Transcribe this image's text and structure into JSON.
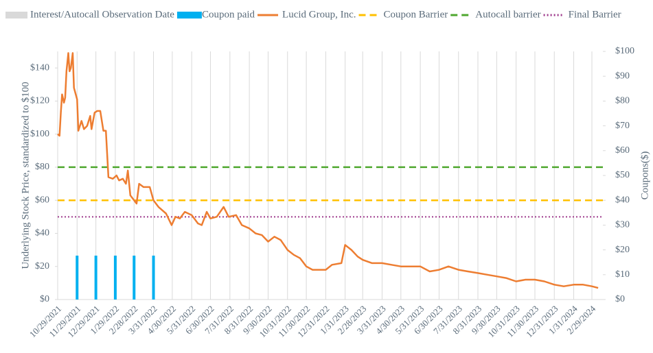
{
  "chart_data": {
    "type": "line",
    "y_label": "Underlying Stock Price, standardized to $100",
    "y2_label": "Coupons($)",
    "categories": [
      "10/29/2021",
      "11/29/2021",
      "12/29/2021",
      "1/29/2022",
      "2/28/2022",
      "3/31/2022",
      "4/30/2022",
      "5/31/2022",
      "6/30/2022",
      "7/31/2022",
      "8/31/2022",
      "9/30/2022",
      "10/31/2022",
      "11/30/2022",
      "12/31/2022",
      "1/31/2023",
      "2/28/2023",
      "3/31/2023",
      "4/30/2023",
      "5/31/2023",
      "6/30/2023",
      "7/31/2023",
      "8/31/2023",
      "9/30/2023",
      "10/31/2023",
      "11/30/2023",
      "12/31/2023",
      "1/31/2024",
      "2/29/2024"
    ],
    "ylim": [
      0,
      150
    ],
    "yticks": [
      {
        "value": 0,
        "label": "$0"
      },
      {
        "value": 20,
        "label": "$20"
      },
      {
        "value": 40,
        "label": "$40"
      },
      {
        "value": 60,
        "label": "$60"
      },
      {
        "value": 80,
        "label": "$80"
      },
      {
        "value": 100,
        "label": "$100"
      },
      {
        "value": 120,
        "label": "$120"
      },
      {
        "value": 140,
        "label": "$140"
      }
    ],
    "y2lim": [
      0,
      100
    ],
    "y2ticks": [
      {
        "value": 0,
        "label": "$0"
      },
      {
        "value": 10,
        "label": "$10"
      },
      {
        "value": 20,
        "label": "$20"
      },
      {
        "value": 30,
        "label": "$30"
      },
      {
        "value": 40,
        "label": "$40"
      },
      {
        "value": 50,
        "label": "$50"
      },
      {
        "value": 60,
        "label": "$60"
      },
      {
        "value": 70,
        "label": "$70"
      },
      {
        "value": 80,
        "label": "$80"
      },
      {
        "value": 90,
        "label": "$90"
      },
      {
        "value": 100,
        "label": "$100"
      }
    ],
    "series": [
      {
        "name": "Interest/Autocall Observation Date",
        "type": "vgrid",
        "color": "#d9d9d9"
      },
      {
        "name": "Coupon paid",
        "type": "bar",
        "axis": "y2",
        "color": "#00b0f0",
        "x": [
          "11/29/2021",
          "12/29/2021",
          "1/29/2022",
          "2/28/2022",
          "3/31/2022"
        ],
        "values": [
          17.7,
          17.7,
          17.7,
          17.7,
          17.7
        ]
      },
      {
        "name": "Lucid Group, Inc.",
        "type": "line",
        "color": "#ed7d31",
        "x": [
          "10/29/2021",
          "11/1/2021",
          "11/3/2021",
          "11/5/2021",
          "11/8/2021",
          "11/10/2021",
          "11/12/2021",
          "11/15/2021",
          "11/17/2021",
          "11/19/2021",
          "11/22/2021",
          "11/24/2021",
          "11/29/2021",
          "12/1/2021",
          "12/6/2021",
          "12/10/2021",
          "12/15/2021",
          "12/20/2021",
          "12/22/2021",
          "12/27/2021",
          "12/31/2021",
          "1/5/2022",
          "1/10/2022",
          "1/14/2022",
          "1/18/2022",
          "1/25/2022",
          "1/31/2022",
          "2/4/2022",
          "2/10/2022",
          "2/15/2022",
          "2/18/2022",
          "2/22/2022",
          "2/28/2022",
          "3/4/2022",
          "3/8/2022",
          "3/15/2022",
          "3/25/2022",
          "3/31/2022",
          "4/8/2022",
          "4/20/2022",
          "4/29/2022",
          "5/5/2022",
          "5/12/2022",
          "5/20/2022",
          "5/31/2022",
          "6/10/2022",
          "6/16/2022",
          "6/24/2022",
          "6/30/2022",
          "7/10/2022",
          "7/21/2022",
          "7/29/2022",
          "8/10/2022",
          "8/19/2022",
          "8/31/2022",
          "9/10/2022",
          "9/20/2022",
          "9/30/2022",
          "10/10/2022",
          "10/20/2022",
          "10/31/2022",
          "11/10/2022",
          "11/20/2022",
          "11/30/2022",
          "12/10/2022",
          "12/31/2022",
          "1/10/2023",
          "1/25/2023",
          "1/31/2023",
          "2/10/2023",
          "2/20/2023",
          "2/28/2023",
          "3/15/2023",
          "3/31/2023",
          "4/15/2023",
          "4/30/2023",
          "5/15/2023",
          "5/31/2023",
          "6/15/2023",
          "6/30/2023",
          "7/15/2023",
          "7/31/2023",
          "8/15/2023",
          "8/31/2023",
          "9/15/2023",
          "9/30/2023",
          "10/15/2023",
          "10/31/2023",
          "11/15/2023",
          "11/30/2023",
          "12/15/2023",
          "12/31/2023",
          "1/15/2024",
          "1/31/2024",
          "2/15/2024",
          "2/29/2024",
          "3/10/2024"
        ],
        "values": [
          100,
          99,
          113,
          124,
          119,
          122,
          138,
          149,
          138,
          140,
          149,
          128,
          121,
          102,
          108,
          103,
          105,
          111,
          103,
          113,
          114,
          114,
          102,
          102,
          74,
          73,
          75,
          72,
          73,
          70,
          78,
          63,
          60,
          58,
          70,
          68,
          68,
          60,
          56,
          52,
          45,
          50,
          49,
          53,
          51,
          46,
          45,
          53,
          49,
          50,
          56,
          50,
          51,
          45,
          43,
          40,
          39,
          35,
          38,
          36,
          30,
          27,
          25,
          20,
          18,
          18,
          21,
          22,
          33,
          30,
          26,
          24,
          22,
          22,
          21,
          20,
          20,
          20,
          17,
          18,
          20,
          18,
          17,
          16,
          15,
          14,
          13,
          11,
          12,
          12,
          11,
          9,
          8,
          9,
          9,
          8,
          7
        ]
      },
      {
        "name": "Coupon Barrier",
        "type": "hline",
        "dash": "dashed",
        "color": "#ffc000",
        "value": 60
      },
      {
        "name": "Autocall barrier",
        "type": "hline",
        "dash": "dashed",
        "color": "#4ea72e",
        "value": 80
      },
      {
        "name": "Final Barrier",
        "type": "hline",
        "dash": "dotted",
        "color": "#9e3a8c",
        "value": 50
      }
    ]
  }
}
